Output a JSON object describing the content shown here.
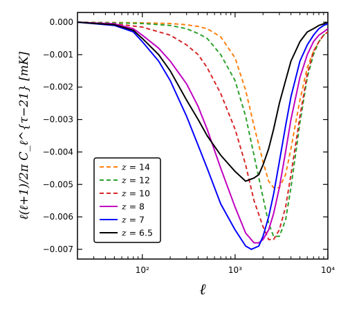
{
  "chart_data": {
    "type": "line",
    "xscale": "log",
    "xlim": [
      20,
      10000
    ],
    "ylim": [
      -0.0073,
      0.0003
    ],
    "xlabel": "ℓ",
    "ylabel": "ℓ(ℓ+1)/2π C_ℓ^{τ−21} [mK]",
    "x_ticks": [
      100,
      1000,
      10000
    ],
    "x_tick_labels": [
      "10²",
      "10³",
      "10⁴"
    ],
    "y_ticks": [
      0.0,
      -0.001,
      -0.002,
      -0.003,
      -0.004,
      -0.005,
      -0.006,
      -0.007
    ],
    "y_tick_labels": [
      "0.000",
      "−0.001",
      "−0.002",
      "−0.003",
      "−0.004",
      "−0.005",
      "−0.006",
      "−0.007"
    ],
    "grid": false,
    "legend_position": "lower-left",
    "series": [
      {
        "name": "z = 14",
        "label_main": "z",
        "label_value": "= 14",
        "color": "#ff7f0e",
        "dash": true,
        "x": [
          20,
          50,
          100,
          200,
          300,
          400,
          500,
          700,
          1000,
          1300,
          1600,
          2000,
          2300,
          2600,
          3000,
          3500,
          4000,
          5000,
          6000,
          7000,
          8000,
          9000,
          10000
        ],
        "y": [
          0,
          -1e-05,
          -2e-05,
          -4e-05,
          -8e-05,
          -0.00013,
          -0.0002,
          -0.00045,
          -0.0011,
          -0.0021,
          -0.0032,
          -0.0043,
          -0.0049,
          -0.0051,
          -0.0051,
          -0.0047,
          -0.0039,
          -0.0024,
          -0.0014,
          -0.0009,
          -0.0006,
          -0.0004,
          -0.0003
        ]
      },
      {
        "name": "z = 12",
        "label_main": "z",
        "label_value": "= 12",
        "color": "#2ca02c",
        "dash": true,
        "x": [
          20,
          50,
          100,
          200,
          300,
          400,
          500,
          700,
          1000,
          1300,
          1600,
          2000,
          2300,
          2600,
          3000,
          3500,
          4000,
          5000,
          6000,
          7000,
          8000,
          9000,
          10000
        ],
        "y": [
          0,
          -2e-05,
          -4e-05,
          -0.0001,
          -0.0002,
          -0.00035,
          -0.0005,
          -0.001,
          -0.0018,
          -0.0029,
          -0.0041,
          -0.0054,
          -0.0062,
          -0.0066,
          -0.0066,
          -0.0061,
          -0.0051,
          -0.0031,
          -0.0017,
          -0.001,
          -0.0006,
          -0.0004,
          -0.0003
        ]
      },
      {
        "name": "z = 10",
        "label_main": "z",
        "label_value": "= 10",
        "color": "#d62728",
        "dash": true,
        "x": [
          20,
          50,
          100,
          200,
          300,
          400,
          500,
          700,
          1000,
          1300,
          1600,
          2000,
          2300,
          2600,
          3000,
          3500,
          4000,
          5000,
          6000,
          7000,
          8000,
          9000,
          10000
        ],
        "y": [
          0,
          -5e-05,
          -0.00015,
          -0.0004,
          -0.0007,
          -0.001,
          -0.0014,
          -0.0022,
          -0.0033,
          -0.0044,
          -0.0055,
          -0.0063,
          -0.0067,
          -0.0067,
          -0.0064,
          -0.0057,
          -0.0047,
          -0.0029,
          -0.0016,
          -0.0009,
          -0.0006,
          -0.0004,
          -0.0003
        ]
      },
      {
        "name": "z = 8",
        "label_main": "z",
        "label_value": "= 8",
        "color": "#bf00bf",
        "dash": false,
        "x": [
          20,
          50,
          80,
          100,
          150,
          200,
          300,
          400,
          500,
          700,
          1000,
          1300,
          1600,
          1800,
          2000,
          2300,
          2600,
          3000,
          3500,
          4000,
          5000,
          6000,
          7000,
          8000,
          9000,
          10000
        ],
        "y": [
          0,
          -5e-05,
          -0.0002,
          -0.0004,
          -0.0008,
          -0.0012,
          -0.0019,
          -0.0026,
          -0.0033,
          -0.0045,
          -0.0057,
          -0.0065,
          -0.0068,
          -0.0068,
          -0.0067,
          -0.0064,
          -0.0059,
          -0.0051,
          -0.004,
          -0.003,
          -0.0017,
          -0.001,
          -0.0006,
          -0.0004,
          -0.0003,
          -0.0002
        ]
      },
      {
        "name": "z = 7",
        "label_main": "z",
        "label_value": "= 7",
        "color": "#0000ff",
        "dash": false,
        "x": [
          20,
          50,
          80,
          100,
          150,
          200,
          300,
          400,
          500,
          700,
          1000,
          1300,
          1500,
          1800,
          2000,
          2300,
          2600,
          3000,
          3500,
          4000,
          5000,
          6000,
          7000,
          8000,
          9000,
          10000
        ],
        "y": [
          0,
          -0.0001,
          -0.0003,
          -0.0006,
          -0.0012,
          -0.0018,
          -0.0029,
          -0.0038,
          -0.0045,
          -0.0056,
          -0.0064,
          -0.0069,
          -0.007,
          -0.0069,
          -0.0066,
          -0.006,
          -0.0053,
          -0.0043,
          -0.0032,
          -0.0023,
          -0.0012,
          -0.0007,
          -0.0004,
          -0.0002,
          -0.0001,
          -5e-05
        ]
      },
      {
        "name": "z = 6.5",
        "label_main": "z",
        "label_value": "= 6.5",
        "color": "#000000",
        "dash": false,
        "x": [
          20,
          50,
          80,
          100,
          150,
          200,
          300,
          400,
          500,
          700,
          1000,
          1300,
          1600,
          1800,
          2000,
          2300,
          2600,
          3000,
          3500,
          4000,
          5000,
          6000,
          7000,
          8000,
          9000,
          10000
        ],
        "y": [
          0,
          -8e-05,
          -0.00025,
          -0.0005,
          -0.001,
          -0.0015,
          -0.0024,
          -0.003,
          -0.0035,
          -0.0041,
          -0.0046,
          -0.0049,
          -0.0048,
          -0.0047,
          -0.0044,
          -0.0039,
          -0.0033,
          -0.0025,
          -0.0018,
          -0.0012,
          -0.0006,
          -0.0003,
          -0.0002,
          -0.0001,
          -5e-05,
          0
        ]
      }
    ]
  }
}
